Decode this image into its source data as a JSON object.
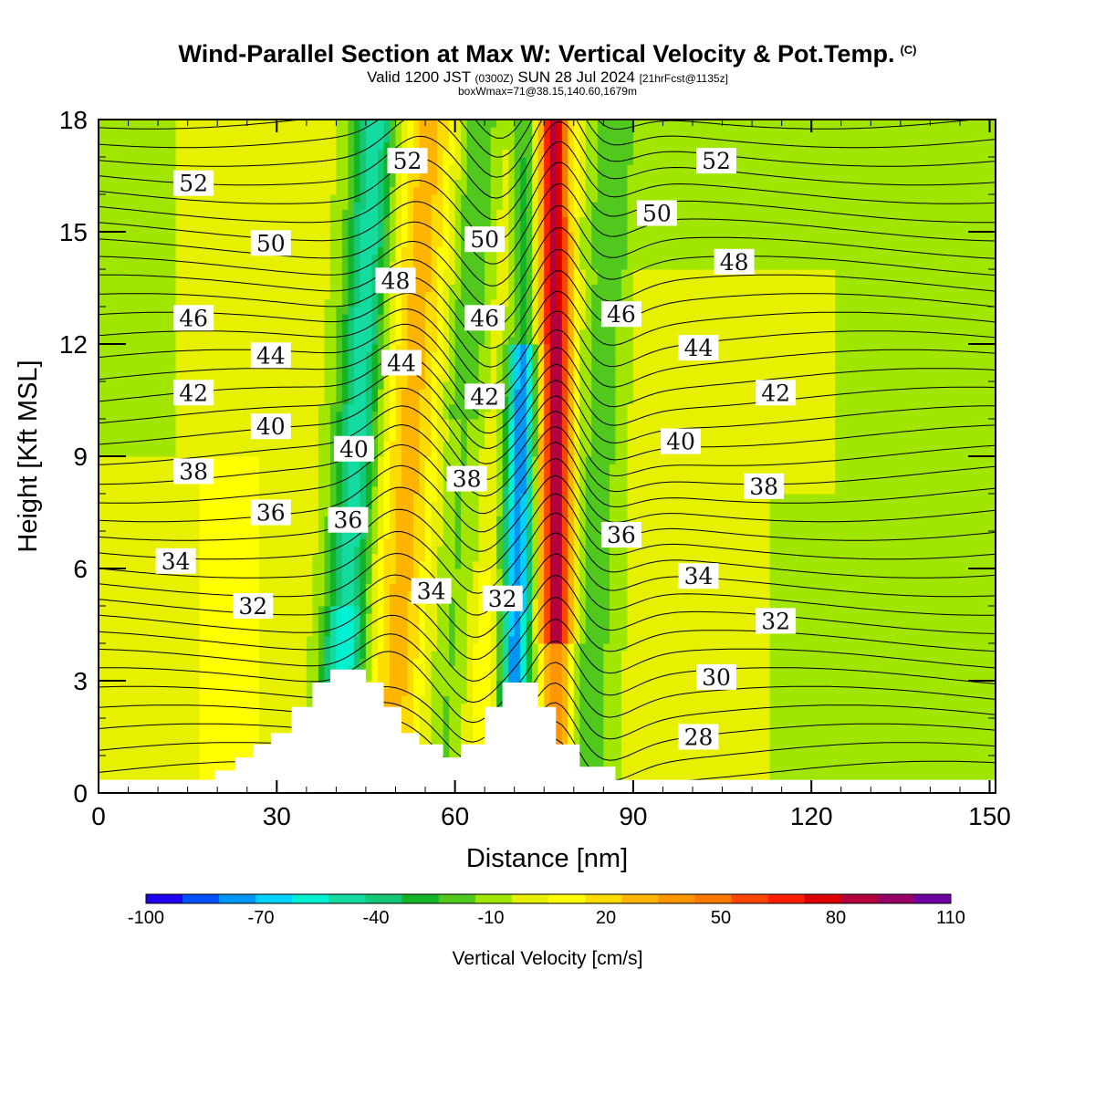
{
  "title": {
    "main": "Wind-Parallel Section at Max W: Vertical Velocity & Pot.Temp.",
    "copyright": "(C)",
    "valid_prefix": "Valid 1200 JST",
    "valid_utc": "(0300Z)",
    "valid_date": "SUN 28 Jul 2024",
    "forecast": "[21hrFcst@1135z]",
    "box": "boxWmax=71@38.15,140.60,1679m"
  },
  "chart_data": {
    "type": "heatmap",
    "xlabel": "Distance [nm]",
    "ylabel": "Height [Kft MSL]",
    "xlim": [
      0,
      151
    ],
    "ylim": [
      0,
      18
    ],
    "xticks": [
      0,
      30,
      60,
      90,
      120,
      150
    ],
    "yticks": [
      0,
      3,
      6,
      9,
      12,
      15,
      18
    ],
    "colorbar": {
      "title": "Vertical Velocity [cm/s]",
      "tick_values": [
        -100,
        -70,
        -40,
        -10,
        20,
        50,
        80,
        110
      ],
      "tick_labels": [
        "-100",
        "-70",
        "-40",
        "-10",
        "20",
        "50",
        "80",
        "110"
      ],
      "bins": [
        -100,
        -90,
        -80,
        -70,
        -60,
        -50,
        -40,
        -30,
        -20,
        -10,
        0,
        10,
        20,
        30,
        40,
        50,
        60,
        70,
        80,
        90,
        100,
        110
      ],
      "colors": [
        "#1e00f0",
        "#0050ff",
        "#0096f5",
        "#00d2ff",
        "#00f0d2",
        "#14dca0",
        "#14c878",
        "#14b428",
        "#50c81e",
        "#a0e600",
        "#e6f000",
        "#ffff00",
        "#ffdc00",
        "#ffb400",
        "#ff9600",
        "#ff7800",
        "#ff4600",
        "#ff1e00",
        "#dc0000",
        "#b4003c",
        "#960064",
        "#6e00a0"
      ]
    },
    "potential_temperature": {
      "unit": "°C",
      "contour_labels": [
        {
          "value": "52",
          "x": 16,
          "y": 16.3
        },
        {
          "value": "52",
          "x": 52,
          "y": 16.9
        },
        {
          "value": "52",
          "x": 104,
          "y": 16.9
        },
        {
          "value": "50",
          "x": 29,
          "y": 14.7
        },
        {
          "value": "50",
          "x": 65,
          "y": 14.8
        },
        {
          "value": "50",
          "x": 94,
          "y": 15.5
        },
        {
          "value": "48",
          "x": 50,
          "y": 13.7
        },
        {
          "value": "48",
          "x": 107,
          "y": 14.2
        },
        {
          "value": "46",
          "x": 16,
          "y": 12.7
        },
        {
          "value": "46",
          "x": 65,
          "y": 12.7
        },
        {
          "value": "46",
          "x": 88,
          "y": 12.8
        },
        {
          "value": "44",
          "x": 29,
          "y": 11.7
        },
        {
          "value": "44",
          "x": 51,
          "y": 11.5
        },
        {
          "value": "44",
          "x": 101,
          "y": 11.9
        },
        {
          "value": "42",
          "x": 16,
          "y": 10.7
        },
        {
          "value": "42",
          "x": 65,
          "y": 10.6
        },
        {
          "value": "42",
          "x": 114,
          "y": 10.7
        },
        {
          "value": "40",
          "x": 29,
          "y": 9.8
        },
        {
          "value": "40",
          "x": 43,
          "y": 9.2
        },
        {
          "value": "40",
          "x": 98,
          "y": 9.4
        },
        {
          "value": "38",
          "x": 16,
          "y": 8.6
        },
        {
          "value": "38",
          "x": 62,
          "y": 8.4
        },
        {
          "value": "38",
          "x": 112,
          "y": 8.2
        },
        {
          "value": "36",
          "x": 29,
          "y": 7.5
        },
        {
          "value": "36",
          "x": 42,
          "y": 7.3
        },
        {
          "value": "36",
          "x": 88,
          "y": 6.9
        },
        {
          "value": "34",
          "x": 13,
          "y": 6.2
        },
        {
          "value": "34",
          "x": 56,
          "y": 5.4
        },
        {
          "value": "34",
          "x": 101,
          "y": 5.8
        },
        {
          "value": "32",
          "x": 26,
          "y": 5.0
        },
        {
          "value": "32",
          "x": 68,
          "y": 5.2
        },
        {
          "value": "32",
          "x": 114,
          "y": 4.6
        },
        {
          "value": "30",
          "x": 104,
          "y": 3.1
        },
        {
          "value": "28",
          "x": 101,
          "y": 1.5
        }
      ]
    },
    "terrain_kft": [
      [
        0,
        0.35
      ],
      [
        19.5,
        0.35
      ],
      [
        19.5,
        0.6
      ],
      [
        23,
        0.6
      ],
      [
        23,
        0.95
      ],
      [
        26,
        0.95
      ],
      [
        26,
        1.3
      ],
      [
        29,
        1.3
      ],
      [
        29,
        1.6
      ],
      [
        32.5,
        1.6
      ],
      [
        32.5,
        2.3
      ],
      [
        36,
        2.3
      ],
      [
        36,
        2.95
      ],
      [
        39,
        2.95
      ],
      [
        39,
        3.3
      ],
      [
        45,
        3.3
      ],
      [
        45,
        2.95
      ],
      [
        48,
        2.95
      ],
      [
        48,
        2.3
      ],
      [
        51,
        2.3
      ],
      [
        51,
        1.6
      ],
      [
        54,
        1.6
      ],
      [
        54,
        1.3
      ],
      [
        58,
        1.3
      ],
      [
        58,
        0.95
      ],
      [
        61,
        0.95
      ],
      [
        61,
        1.3
      ],
      [
        65,
        1.3
      ],
      [
        65,
        2.3
      ],
      [
        68,
        2.3
      ],
      [
        68,
        2.95
      ],
      [
        74,
        2.95
      ],
      [
        74,
        2.3
      ],
      [
        77,
        2.3
      ],
      [
        77,
        1.3
      ],
      [
        81,
        1.3
      ],
      [
        81,
        0.7
      ],
      [
        87,
        0.7
      ],
      [
        87,
        0.35
      ],
      [
        151,
        0.35
      ]
    ]
  }
}
